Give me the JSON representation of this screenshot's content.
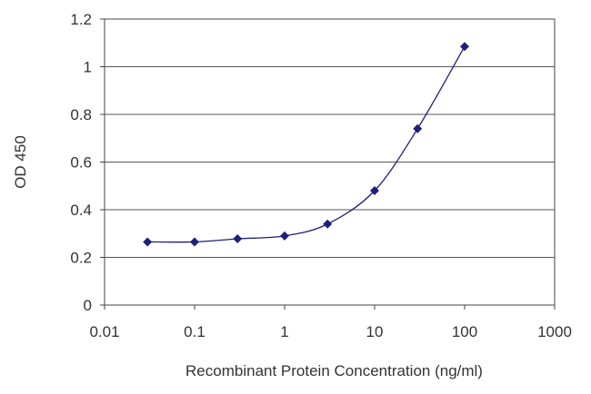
{
  "chart_data": {
    "type": "line",
    "title": "",
    "xlabel": "Recombinant Protein Concentration (ng/ml)",
    "ylabel": "OD 450",
    "xscale": "log",
    "xlim": [
      0.01,
      1000
    ],
    "ylim": [
      0,
      1.2
    ],
    "x_ticks": [
      0.01,
      0.1,
      1,
      10,
      100,
      1000
    ],
    "x_tick_labels": [
      "0.01",
      "0.1",
      "1",
      "10",
      "100",
      "1000"
    ],
    "y_ticks": [
      0,
      0.2,
      0.4,
      0.6,
      0.8,
      1,
      1.2
    ],
    "y_tick_labels": [
      "0",
      "0.2",
      "0.4",
      "0.6",
      "0.8",
      "1",
      "1.2"
    ],
    "grid": "horizontal",
    "legend": "none",
    "series": [
      {
        "x": [
          0.03,
          0.1,
          0.3,
          1,
          3,
          10,
          30,
          100
        ],
        "y": [
          0.265,
          0.265,
          0.278,
          0.29,
          0.34,
          0.48,
          0.74,
          1.085
        ]
      }
    ],
    "colors": {
      "series": "#1f1f7a",
      "grid": "#555555",
      "axis": "#444444"
    }
  }
}
